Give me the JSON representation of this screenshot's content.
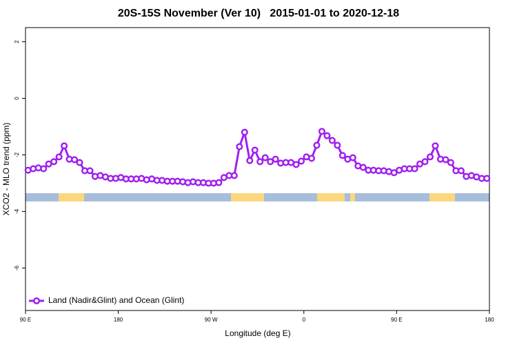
{
  "chart_data": {
    "type": "line",
    "title": "20S-15S November (Ver 10)   2015-01-01 to 2020-12-18",
    "x_label": "Longitude (deg E)",
    "y_label": "XCO2 - MLO trend (ppm)",
    "x": [
      92.5,
      97.5,
      102.5,
      107.5,
      112.5,
      117.5,
      122.5,
      127.5,
      132.5,
      137.5,
      142.5,
      147.5,
      152.5,
      157.5,
      162.5,
      167.5,
      172.5,
      177.5,
      182.5,
      187.5,
      192.5,
      197.5,
      202.5,
      207.5,
      212.5,
      217.5,
      222.5,
      227.5,
      232.5,
      237.5,
      242.5,
      247.5,
      252.5,
      257.5,
      262.5,
      267.5,
      272.5,
      277.5,
      282.5,
      287.5,
      292.5,
      297.5,
      302.5,
      307.5,
      312.5,
      317.5,
      322.5,
      327.5,
      332.5,
      337.5,
      342.5,
      347.5,
      352.5,
      357.5,
      362.5,
      367.5,
      372.5,
      377.5,
      382.5,
      387.5,
      392.5,
      397.5,
      402.5,
      407.5,
      412.5,
      417.5,
      422.5,
      427.5,
      432.5,
      437.5,
      442.5,
      447.5,
      452.5,
      457.5,
      462.5,
      467.5,
      472.5,
      477.5,
      482.5,
      487.5,
      492.5,
      497.5,
      502.5,
      507.5,
      512.5,
      517.5,
      522.5,
      527.5,
      532.5,
      537.5
    ],
    "series": [
      {
        "name": "Land (Nadir&Glint) and Ocean (Glint)",
        "color": "#a020f0",
        "values": [
          -2.54,
          -2.49,
          -2.46,
          -2.49,
          -2.32,
          -2.24,
          -2.07,
          -1.68,
          -2.15,
          -2.17,
          -2.27,
          -2.56,
          -2.56,
          -2.76,
          -2.73,
          -2.78,
          -2.83,
          -2.83,
          -2.8,
          -2.85,
          -2.85,
          -2.85,
          -2.83,
          -2.88,
          -2.85,
          -2.9,
          -2.9,
          -2.93,
          -2.93,
          -2.93,
          -2.95,
          -2.98,
          -2.95,
          -2.98,
          -2.98,
          -3.0,
          -3.0,
          -2.98,
          -2.8,
          -2.73,
          -2.73,
          -1.71,
          -1.2,
          -2.2,
          -1.83,
          -2.24,
          -2.1,
          -2.24,
          -2.15,
          -2.29,
          -2.27,
          -2.27,
          -2.34,
          -2.22,
          -2.07,
          -2.12,
          -1.66,
          -1.17,
          -1.32,
          -1.49,
          -1.66,
          -2.02,
          -2.15,
          -2.1,
          -2.39,
          -2.44,
          -2.54,
          -2.54,
          -2.56,
          -2.56,
          -2.59,
          -2.63,
          -2.54,
          -2.49,
          -2.49,
          -2.49,
          -2.32,
          -2.24,
          -2.07,
          -1.68,
          -2.15,
          -2.17,
          -2.27,
          -2.56,
          -2.56,
          -2.76,
          -2.73,
          -2.78,
          -2.83,
          -2.83
        ]
      }
    ],
    "xlim": [
      90,
      540
    ],
    "xticks": [
      {
        "value": 90,
        "label": "90 E"
      },
      {
        "value": 180,
        "label": "180"
      },
      {
        "value": 270,
        "label": "90 W"
      },
      {
        "value": 360,
        "label": "0"
      },
      {
        "value": 450,
        "label": "90 E"
      },
      {
        "value": 540,
        "label": "180"
      }
    ],
    "ylim": [
      -7.5,
      2.5
    ],
    "yticks": [
      2,
      0,
      -2,
      -4,
      -6
    ],
    "legend": "bottom-left"
  }
}
